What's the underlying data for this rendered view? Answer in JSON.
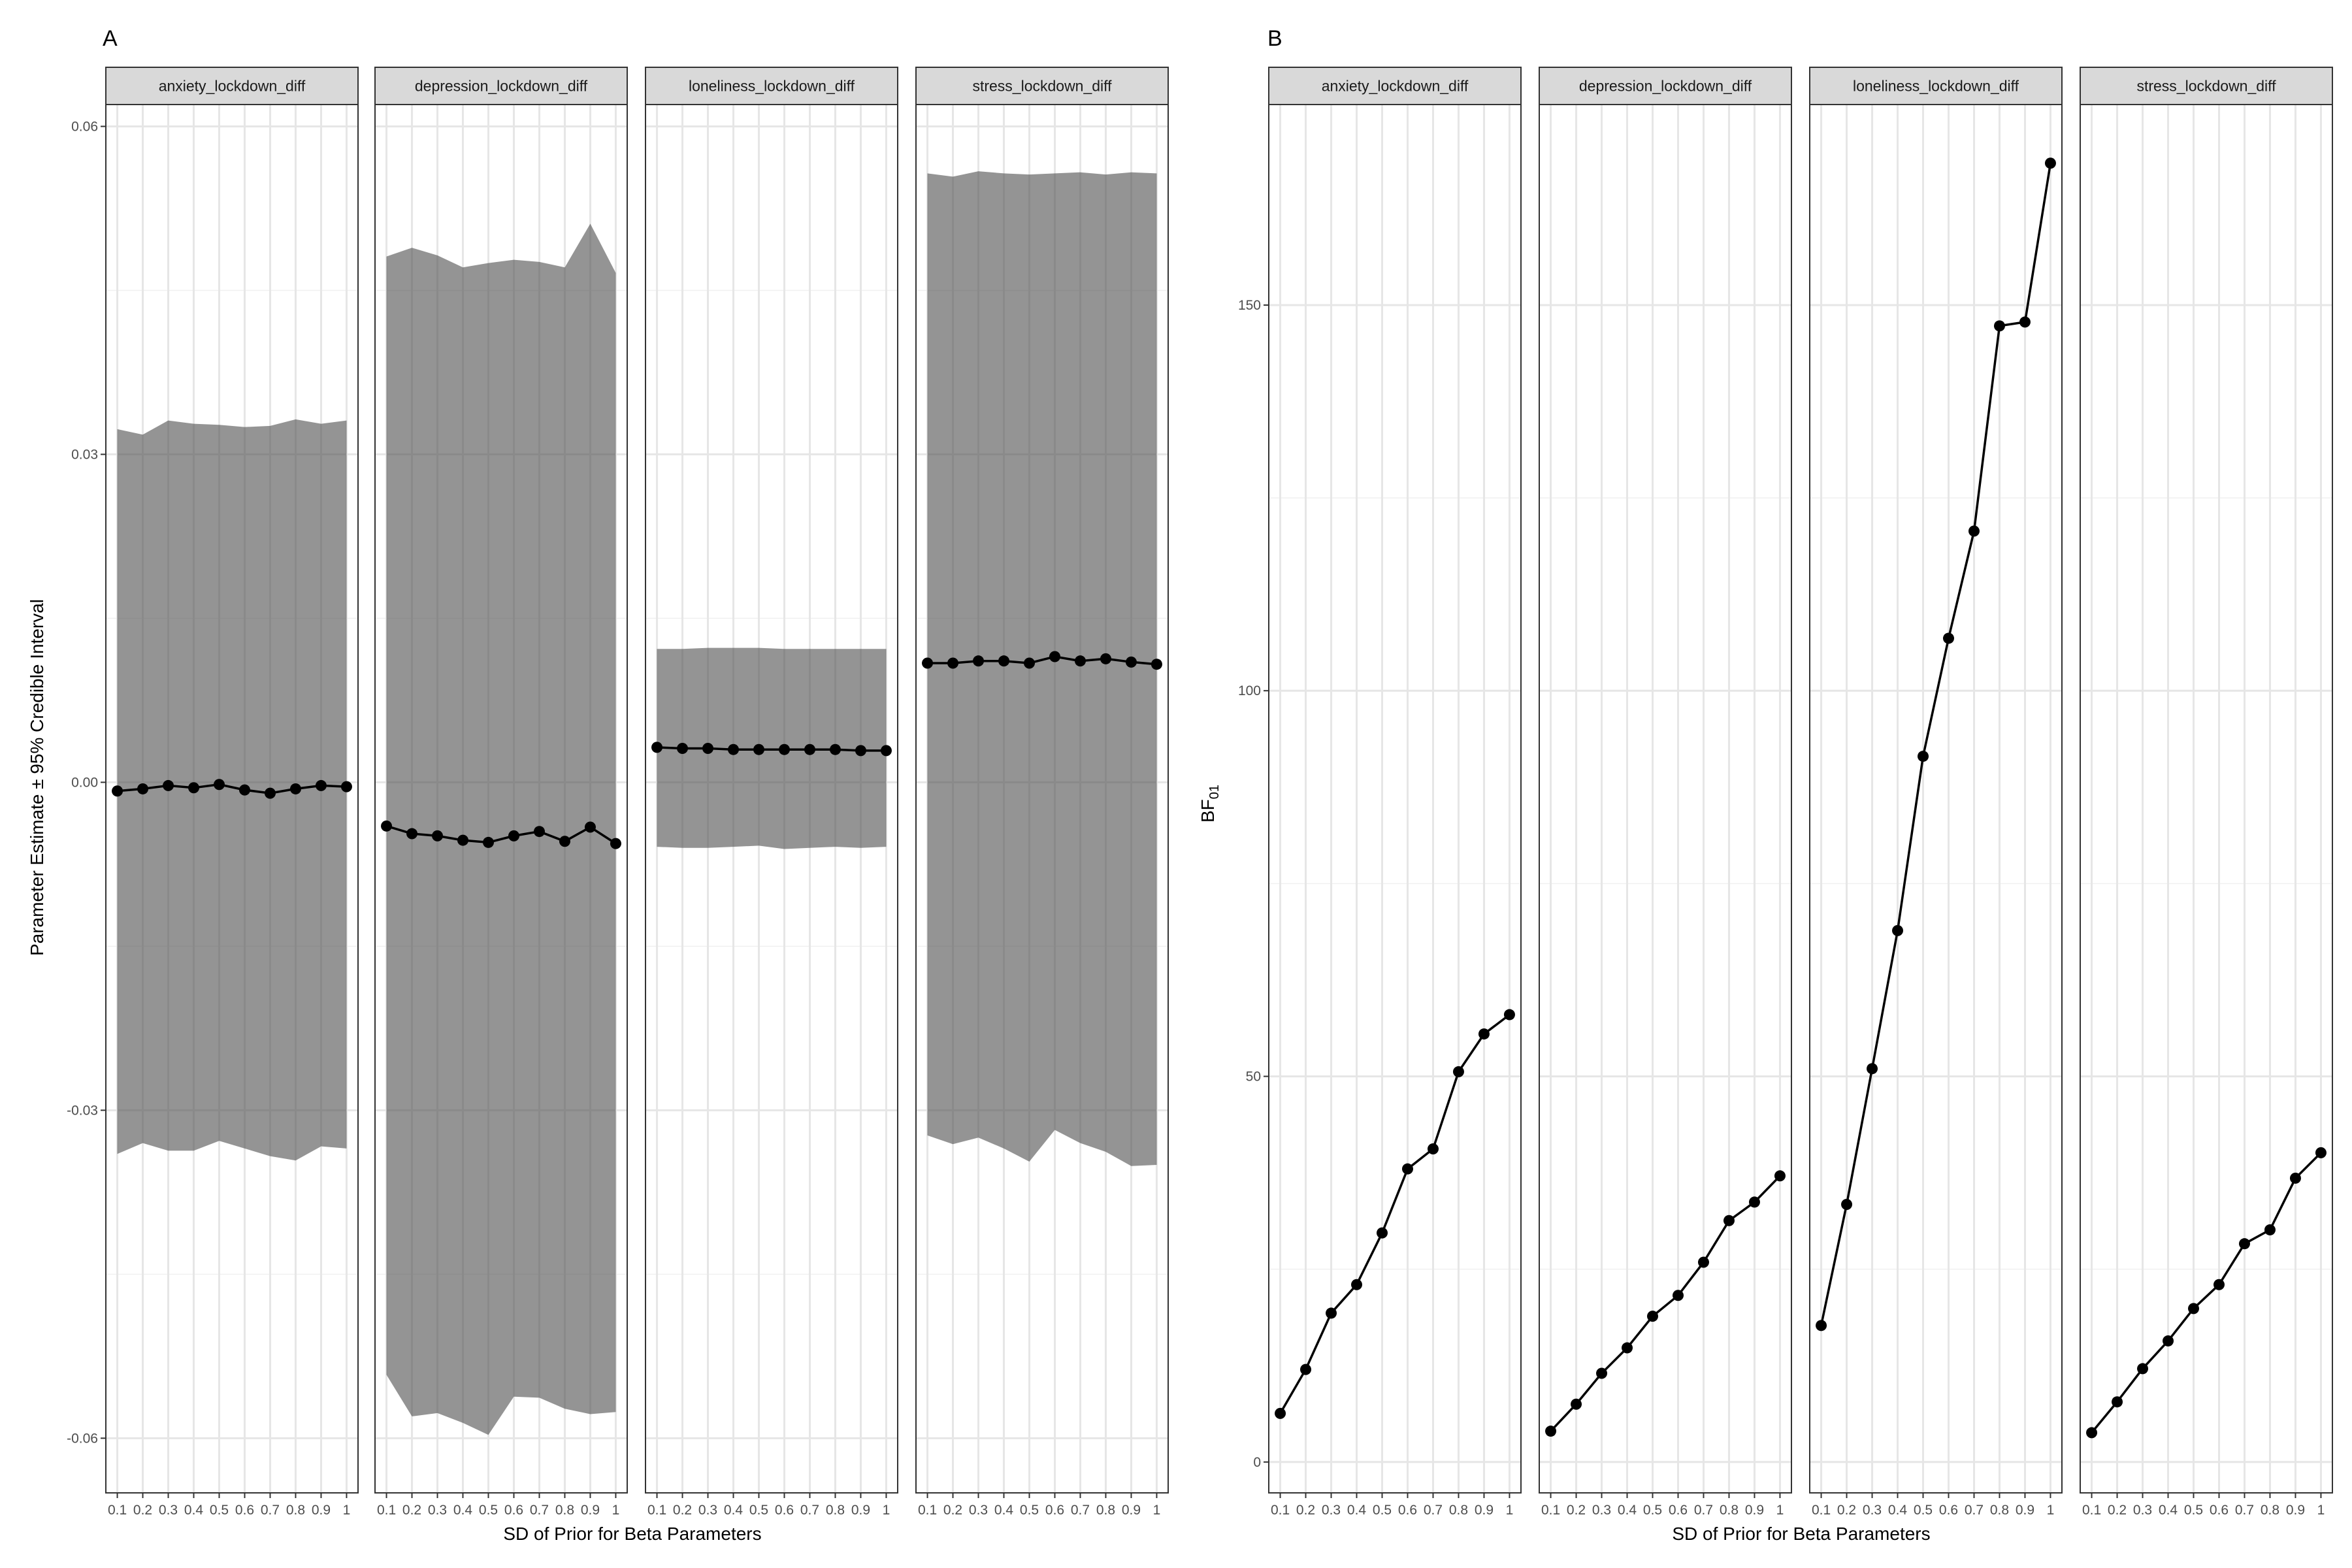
{
  "chart_data": [
    {
      "panel_tag": "A",
      "type": "line",
      "facets": [
        "anxiety_lockdown_diff",
        "depression_lockdown_diff",
        "loneliness_lockdown_diff",
        "stress_lockdown_diff"
      ],
      "x": [
        0.1,
        0.2,
        0.3,
        0.4,
        0.5,
        0.6,
        0.7,
        0.8,
        0.9,
        1.0
      ],
      "x_tick_labels": [
        "0.1",
        "0.2",
        "0.3",
        "0.4",
        "0.5",
        "0.6",
        "0.7",
        "0.8",
        "0.9",
        "1"
      ],
      "xlabel": "SD of Prior for Beta Parameters",
      "ylabel": "Parameter Estimate ± 95% Credible Interval",
      "ylim": [
        -0.065,
        0.062
      ],
      "y_ticks": [
        -0.06,
        -0.03,
        0.0,
        0.03,
        0.06
      ],
      "y_tick_labels": [
        "-0.06",
        "-0.03",
        "0.00",
        "0.03",
        "0.06"
      ],
      "grid": true,
      "series": [
        {
          "facet": "anxiety_lockdown_diff",
          "estimate": [
            -0.0008,
            -0.0006,
            -0.0003,
            -0.0005,
            -0.0002,
            -0.0007,
            -0.001,
            -0.0006,
            -0.0003,
            -0.0004
          ],
          "lower": [
            -0.034,
            -0.033,
            -0.0337,
            -0.0337,
            -0.0328,
            -0.0335,
            -0.0342,
            -0.0346,
            -0.0333,
            -0.0335
          ],
          "upper": [
            0.0323,
            0.0318,
            0.0331,
            0.0328,
            0.0327,
            0.0325,
            0.0326,
            0.0332,
            0.0328,
            0.0331
          ]
        },
        {
          "facet": "depression_lockdown_diff",
          "estimate": [
            -0.004,
            -0.0047,
            -0.0049,
            -0.0053,
            -0.0055,
            -0.0049,
            -0.0045,
            -0.0054,
            -0.0041,
            -0.0056
          ],
          "lower": [
            -0.0542,
            -0.058,
            -0.0577,
            -0.0586,
            -0.0597,
            -0.0562,
            -0.0563,
            -0.0573,
            -0.0578,
            -0.0576
          ],
          "upper": [
            0.0481,
            0.0489,
            0.0482,
            0.0471,
            0.0475,
            0.0478,
            0.0476,
            0.0471,
            0.0511,
            0.0466
          ]
        },
        {
          "facet": "loneliness_lockdown_diff",
          "estimate": [
            0.0032,
            0.0031,
            0.0031,
            0.003,
            0.003,
            0.003,
            0.003,
            0.003,
            0.0029,
            0.0029
          ],
          "lower": [
            -0.0059,
            -0.006,
            -0.006,
            -0.0059,
            -0.0058,
            -0.0061,
            -0.006,
            -0.0059,
            -0.006,
            -0.0059
          ],
          "upper": [
            0.0122,
            0.0122,
            0.0123,
            0.0123,
            0.0123,
            0.0122,
            0.0122,
            0.0122,
            0.0122,
            0.0122
          ]
        },
        {
          "facet": "stress_lockdown_diff",
          "estimate": [
            0.0109,
            0.0109,
            0.0111,
            0.0111,
            0.0109,
            0.0115,
            0.0111,
            0.0113,
            0.011,
            0.0108
          ],
          "lower": [
            -0.0323,
            -0.0331,
            -0.0325,
            -0.0335,
            -0.0347,
            -0.0318,
            -0.033,
            -0.0338,
            -0.0351,
            -0.035
          ],
          "upper": [
            0.0557,
            0.0554,
            0.0559,
            0.0557,
            0.0556,
            0.0557,
            0.0558,
            0.0556,
            0.0558,
            0.0557
          ]
        }
      ]
    },
    {
      "panel_tag": "B",
      "type": "line",
      "facets": [
        "anxiety_lockdown_diff",
        "depression_lockdown_diff",
        "loneliness_lockdown_diff",
        "stress_lockdown_diff"
      ],
      "x": [
        0.1,
        0.2,
        0.3,
        0.4,
        0.5,
        0.6,
        0.7,
        0.8,
        0.9,
        1.0
      ],
      "x_tick_labels": [
        "0.1",
        "0.2",
        "0.3",
        "0.4",
        "0.5",
        "0.6",
        "0.7",
        "0.8",
        "0.9",
        "1"
      ],
      "xlabel": "SD of Prior for Beta Parameters",
      "ylabel_main": "BF",
      "ylabel_sub": "01",
      "ylim": [
        -4,
        176
      ],
      "y_ticks": [
        0,
        50,
        100,
        150
      ],
      "y_tick_labels": [
        "0",
        "50",
        "100",
        "150"
      ],
      "grid": true,
      "series": [
        {
          "facet": "anxiety_lockdown_diff",
          "values": [
            6.3,
            12.0,
            19.3,
            23.0,
            29.7,
            38.0,
            40.6,
            50.6,
            55.5,
            58.0
          ]
        },
        {
          "facet": "depression_lockdown_diff",
          "values": [
            4.0,
            7.5,
            11.5,
            14.8,
            18.9,
            21.6,
            25.9,
            31.3,
            33.7,
            37.1
          ]
        },
        {
          "facet": "loneliness_lockdown_diff",
          "values": [
            17.7,
            33.4,
            51.0,
            68.9,
            91.5,
            106.8,
            120.7,
            147.3,
            147.8,
            168.4
          ]
        },
        {
          "facet": "stress_lockdown_diff",
          "values": [
            3.8,
            7.8,
            12.1,
            15.7,
            19.9,
            23.0,
            28.3,
            30.1,
            36.8,
            40.1
          ]
        }
      ]
    }
  ]
}
